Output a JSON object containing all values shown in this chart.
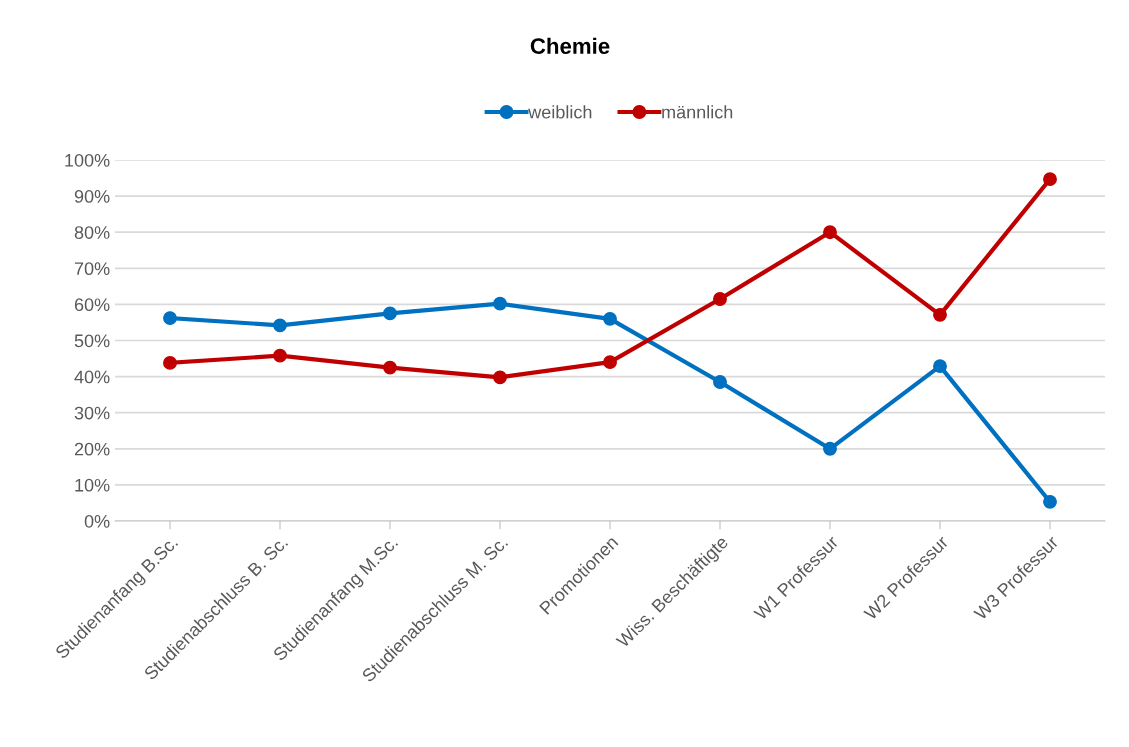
{
  "chart_data": {
    "type": "line",
    "title": "Chemie",
    "categories": [
      "Studienanfang B.Sc.",
      "Studienabschluss B. Sc.",
      "Studienanfang M.Sc.",
      "Studienabschluss M. Sc.",
      "Promotionen",
      "Wiss. Beschäftigte",
      "W1 Professur",
      "W2 Professur",
      "W3 Professur"
    ],
    "series": [
      {
        "name": "weiblich",
        "color": "#0070c0",
        "values": [
          56.2,
          54.2,
          57.5,
          60.2,
          56.0,
          38.5,
          20.0,
          42.9,
          5.3
        ]
      },
      {
        "name": "männlich",
        "color": "#c00000",
        "values": [
          43.8,
          45.8,
          42.5,
          39.8,
          44.0,
          61.5,
          80.0,
          57.1,
          94.7
        ]
      }
    ],
    "ylim": [
      0,
      100
    ],
    "yticks": [
      {
        "value": 0,
        "label": "0%"
      },
      {
        "value": 10,
        "label": "10%"
      },
      {
        "value": 20,
        "label": "20%"
      },
      {
        "value": 30,
        "label": "30%"
      },
      {
        "value": 40,
        "label": "40%"
      },
      {
        "value": 50,
        "label": "50%"
      },
      {
        "value": 60,
        "label": "60%"
      },
      {
        "value": 70,
        "label": "70%"
      },
      {
        "value": 80,
        "label": "80%"
      },
      {
        "value": 90,
        "label": "90%"
      },
      {
        "value": 100,
        "label": "100%"
      }
    ],
    "grid": "y",
    "legend": "top",
    "marker": "circle",
    "line_style": "solid"
  }
}
